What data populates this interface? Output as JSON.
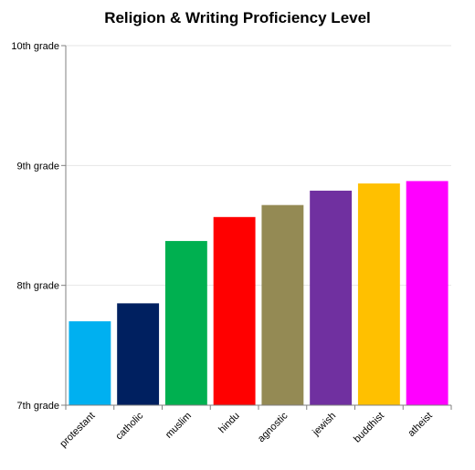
{
  "chart_data": {
    "type": "bar",
    "title": "Religion & Writing Proficiency Level",
    "xlabel": "",
    "ylabel": "",
    "categories": [
      "protestant",
      "catholic",
      "muslim",
      "hindu",
      "agnostic",
      "jewish",
      "buddhist",
      "atheist"
    ],
    "values": [
      7.7,
      7.85,
      8.37,
      8.57,
      8.67,
      8.79,
      8.85,
      8.87
    ],
    "colors": [
      "#00B0F0",
      "#002060",
      "#00B050",
      "#FF0000",
      "#948A54",
      "#7030A0",
      "#FFC000",
      "#FF00FF"
    ],
    "ylim": [
      7,
      10
    ],
    "yticks": [
      {
        "value": 7,
        "label": "7th grade"
      },
      {
        "value": 8,
        "label": "8th grade"
      },
      {
        "value": 9,
        "label": "9th grade"
      },
      {
        "value": 10,
        "label": "10th grade"
      }
    ],
    "grid": true,
    "legend": "none"
  }
}
